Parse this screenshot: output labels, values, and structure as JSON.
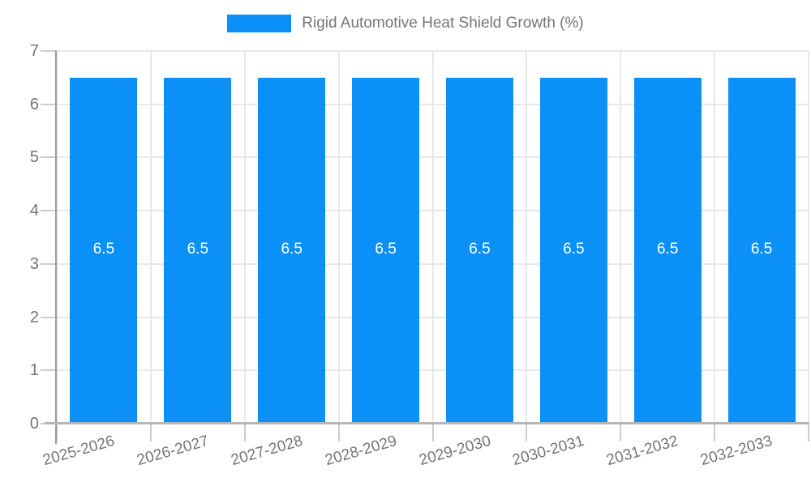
{
  "legend": {
    "label": "Rigid Automotive Heat Shield Growth (%)"
  },
  "chart_data": {
    "type": "bar",
    "title": "",
    "categories": [
      "2025-2026",
      "2026-2027",
      "2027-2028",
      "2028-2029",
      "2029-2030",
      "2030-2031",
      "2031-2032",
      "2032-2033"
    ],
    "series": [
      {
        "name": "Rigid Automotive Heat Shield Growth (%)",
        "values": [
          6.5,
          6.5,
          6.5,
          6.5,
          6.5,
          6.5,
          6.5,
          6.5
        ]
      }
    ],
    "bar_labels": [
      "6.5",
      "6.5",
      "6.5",
      "6.5",
      "6.5",
      "6.5",
      "6.5",
      "6.5"
    ],
    "xlabel": "",
    "ylabel": "",
    "ylim": [
      0,
      7
    ],
    "yticks": [
      0,
      1,
      2,
      3,
      4,
      5,
      6,
      7
    ],
    "grid": true,
    "legend_position": "top-center",
    "colors": {
      "bar": "#0b90f8",
      "bar_label": "#ffffff",
      "axis_text": "#757575",
      "grid_line": "#e8e8e8",
      "tick_line": "#cccccc",
      "y_axis_line": "#9a9a9a",
      "x_axis_line": "#b5b5b5"
    }
  }
}
